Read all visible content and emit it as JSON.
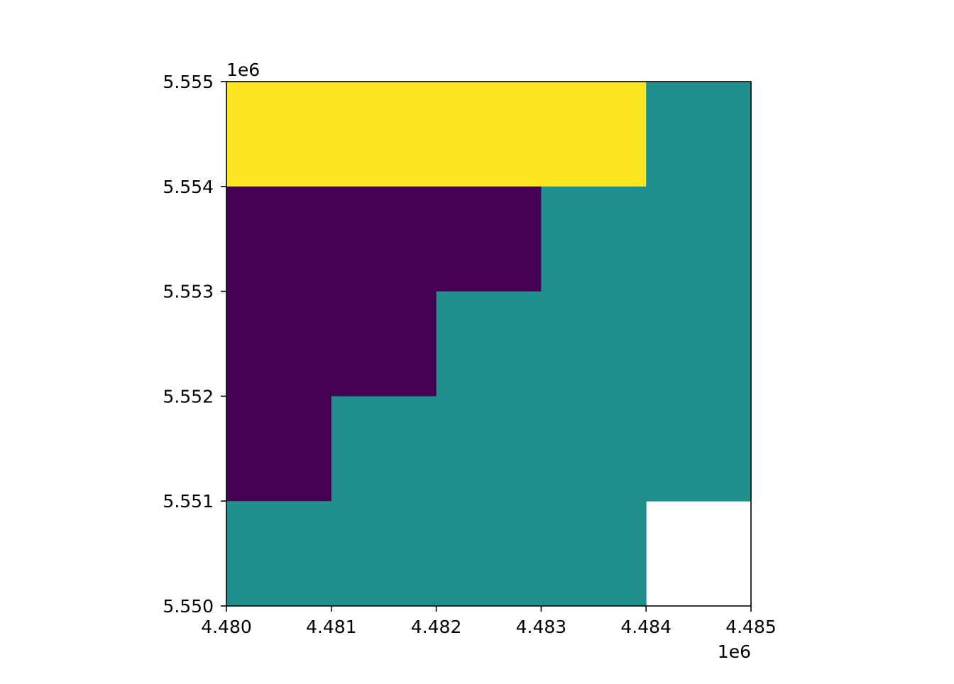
{
  "chart_data": {
    "type": "heatmap",
    "title": "",
    "xlabel": "",
    "ylabel": "",
    "xlim": [
      4480000,
      4485000
    ],
    "ylim": [
      5550000,
      5555000
    ],
    "x_edges": [
      4480000,
      4481000,
      4482000,
      4483000,
      4484000,
      4485000
    ],
    "y_edges_top_down": [
      5555000,
      5554000,
      5553000,
      5552000,
      5551000,
      5550000
    ],
    "xticks": [
      4480000,
      4481000,
      4482000,
      4483000,
      4484000,
      4485000
    ],
    "xtick_labels": [
      "4.480",
      "4.481",
      "4.482",
      "4.483",
      "4.484",
      "4.485"
    ],
    "yticks": [
      5550000,
      5551000,
      5552000,
      5553000,
      5554000,
      5555000
    ],
    "ytick_labels": [
      "5.550",
      "5.551",
      "5.552",
      "5.553",
      "5.554",
      "5.555"
    ],
    "x_offset_label": "1e6",
    "y_offset_label": "1e6",
    "grid": false,
    "colormap": "viridis",
    "value_colors": {
      "0": "#440154",
      "1": "#21908d",
      "2": "#fde725"
    },
    "values_top_down": [
      [
        2,
        2,
        2,
        2,
        1
      ],
      [
        0,
        0,
        0,
        1,
        1
      ],
      [
        0,
        0,
        1,
        1,
        1
      ],
      [
        0,
        1,
        1,
        1,
        1
      ],
      [
        1,
        1,
        1,
        1,
        null
      ]
    ]
  }
}
